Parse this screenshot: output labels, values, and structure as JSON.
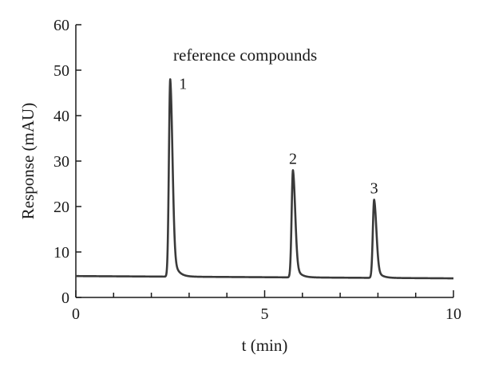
{
  "chart_data": {
    "type": "line",
    "title": "",
    "annotation": "reference compounds",
    "xlabel": "t (min)",
    "ylabel": "Response (mAU)",
    "xlim": [
      0,
      10
    ],
    "ylim": [
      0,
      60
    ],
    "x_major_ticks": [
      0,
      5,
      10
    ],
    "x_minor_ticks": [
      1,
      2,
      3,
      4,
      6,
      7,
      8,
      9
    ],
    "y_ticks": [
      0,
      10,
      20,
      30,
      40,
      50,
      60
    ],
    "x_tick_labels": [
      "0",
      "5",
      "10"
    ],
    "y_tick_labels": [
      "0",
      "10",
      "20",
      "30",
      "40",
      "50",
      "60"
    ],
    "grid": false,
    "line_color": "#3a3a3a",
    "baseline": {
      "start": 4.7,
      "end": 4.2
    },
    "peaks": [
      {
        "label": "1",
        "t": 2.5,
        "height": 48
      },
      {
        "label": "2",
        "t": 5.75,
        "height": 28
      },
      {
        "label": "3",
        "t": 7.9,
        "height": 21.5
      }
    ]
  }
}
